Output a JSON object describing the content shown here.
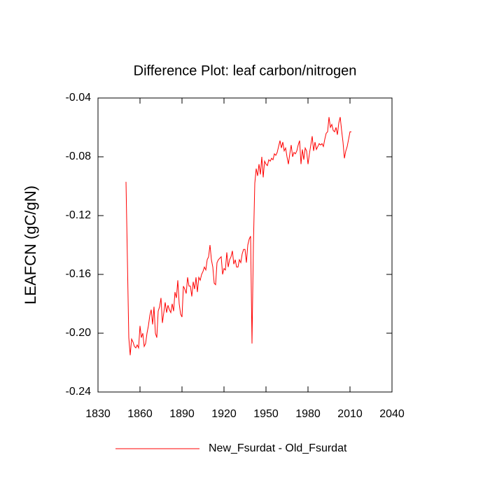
{
  "chart_data": {
    "type": "line",
    "title": "Difference Plot: leaf carbon/nitrogen",
    "y_label": "LEAFCN  (gC/gN)",
    "x": [
      1850,
      1851,
      1852,
      1853,
      1854,
      1855,
      1856,
      1857,
      1858,
      1859,
      1860,
      1861,
      1862,
      1863,
      1864,
      1865,
      1866,
      1867,
      1868,
      1869,
      1870,
      1871,
      1872,
      1873,
      1874,
      1875,
      1876,
      1877,
      1878,
      1879,
      1880,
      1881,
      1882,
      1883,
      1884,
      1885,
      1886,
      1887,
      1888,
      1889,
      1890,
      1891,
      1892,
      1893,
      1894,
      1895,
      1896,
      1897,
      1898,
      1899,
      1900,
      1901,
      1902,
      1903,
      1904,
      1905,
      1906,
      1907,
      1908,
      1909,
      1910,
      1911,
      1912,
      1913,
      1914,
      1915,
      1916,
      1917,
      1918,
      1919,
      1920,
      1921,
      1922,
      1923,
      1924,
      1925,
      1926,
      1927,
      1928,
      1929,
      1930,
      1931,
      1932,
      1933,
      1934,
      1935,
      1936,
      1937,
      1938,
      1939,
      1940,
      1941,
      1942,
      1943,
      1944,
      1945,
      1946,
      1947,
      1948,
      1949,
      1950,
      1951,
      1952,
      1953,
      1954,
      1955,
      1956,
      1957,
      1958,
      1959,
      1960,
      1961,
      1962,
      1963,
      1964,
      1965,
      1966,
      1967,
      1968,
      1969,
      1970,
      1971,
      1972,
      1973,
      1974,
      1975,
      1976,
      1977,
      1978,
      1979,
      1980,
      1981,
      1982,
      1983,
      1984,
      1985,
      1986,
      1987,
      1988,
      1989,
      1990,
      1991,
      1992,
      1993,
      1994,
      1995,
      1996,
      1997,
      1998,
      1999,
      2000,
      2001,
      2002,
      2003,
      2004,
      2005,
      2006,
      2007,
      2008,
      2009,
      2010,
      2011
    ],
    "series": [
      {
        "name": "New_Fsurdat - Old_Fsurdat",
        "color": "#ff0000",
        "values": [
          -0.097,
          -0.15,
          -0.203,
          -0.215,
          -0.204,
          -0.206,
          -0.209,
          -0.21,
          -0.208,
          -0.21,
          -0.195,
          -0.203,
          -0.2,
          -0.209,
          -0.207,
          -0.2,
          -0.195,
          -0.188,
          -0.184,
          -0.194,
          -0.182,
          -0.2,
          -0.203,
          -0.185,
          -0.182,
          -0.176,
          -0.193,
          -0.186,
          -0.179,
          -0.186,
          -0.181,
          -0.184,
          -0.186,
          -0.18,
          -0.185,
          -0.172,
          -0.176,
          -0.164,
          -0.18,
          -0.187,
          -0.189,
          -0.168,
          -0.17,
          -0.173,
          -0.162,
          -0.168,
          -0.168,
          -0.175,
          -0.165,
          -0.17,
          -0.162,
          -0.172,
          -0.162,
          -0.164,
          -0.16,
          -0.158,
          -0.155,
          -0.157,
          -0.15,
          -0.148,
          -0.14,
          -0.15,
          -0.155,
          -0.166,
          -0.167,
          -0.152,
          -0.15,
          -0.149,
          -0.148,
          -0.16,
          -0.156,
          -0.157,
          -0.145,
          -0.155,
          -0.15,
          -0.148,
          -0.144,
          -0.153,
          -0.15,
          -0.155,
          -0.155,
          -0.15,
          -0.152,
          -0.146,
          -0.143,
          -0.143,
          -0.152,
          -0.14,
          -0.136,
          -0.134,
          -0.207,
          -0.14,
          -0.098,
          -0.088,
          -0.093,
          -0.085,
          -0.092,
          -0.08,
          -0.094,
          -0.083,
          -0.085,
          -0.086,
          -0.082,
          -0.083,
          -0.081,
          -0.082,
          -0.078,
          -0.079,
          -0.077,
          -0.073,
          -0.069,
          -0.074,
          -0.07,
          -0.076,
          -0.074,
          -0.08,
          -0.085,
          -0.078,
          -0.072,
          -0.08,
          -0.077,
          -0.078,
          -0.076,
          -0.072,
          -0.069,
          -0.085,
          -0.075,
          -0.082,
          -0.074,
          -0.076,
          -0.085,
          -0.078,
          -0.072,
          -0.066,
          -0.076,
          -0.07,
          -0.075,
          -0.073,
          -0.071,
          -0.072,
          -0.071,
          -0.073,
          -0.068,
          -0.064,
          -0.063,
          -0.053,
          -0.06,
          -0.058,
          -0.062,
          -0.063,
          -0.06,
          -0.065,
          -0.057,
          -0.053,
          -0.062,
          -0.07,
          -0.081,
          -0.076,
          -0.073,
          -0.068,
          -0.063,
          -0.063
        ]
      }
    ],
    "xlim": [
      1830,
      2040
    ],
    "xticks": [
      1830,
      1860,
      1890,
      1920,
      1950,
      1980,
      2010,
      2040
    ],
    "ylim": [
      -0.24,
      -0.04
    ],
    "yticks": [
      -0.24,
      {
        "value": -0.2,
        "label": "-0.20"
      },
      -0.16,
      -0.12,
      -0.08,
      -0.04
    ],
    "legend": "bottom"
  }
}
